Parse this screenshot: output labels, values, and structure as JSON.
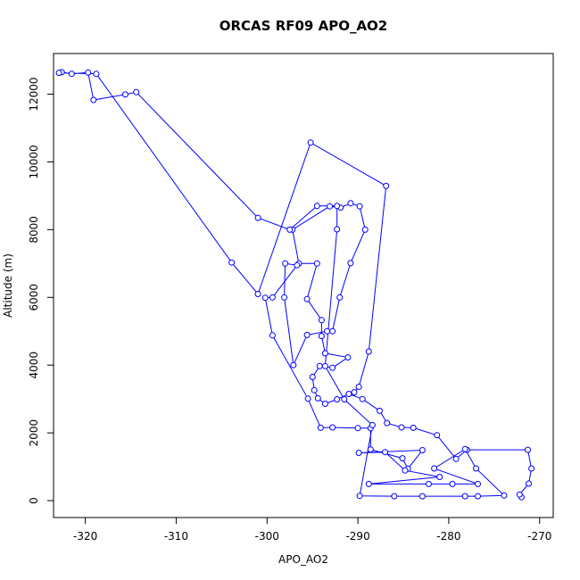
{
  "chart_data": {
    "type": "line",
    "title": "ORCAS RF09 APO_AO2",
    "xlabel": "APO_AO2",
    "ylabel": "Altitude (m)",
    "xlim": [
      -323.5,
      -268.5
    ],
    "ylim": [
      -500,
      13200
    ],
    "xticks": [
      -320,
      -310,
      -300,
      -290,
      -280,
      -270
    ],
    "yticks": [
      0,
      2000,
      4000,
      6000,
      8000,
      10000,
      12000
    ],
    "series_color": "#0000ff",
    "marker": "open-circle",
    "points": [
      [
        -272.0,
        100
      ],
      [
        -272.2,
        180
      ],
      [
        -271.2,
        500
      ],
      [
        -270.9,
        950
      ],
      [
        -271.3,
        1500
      ],
      [
        -278.0,
        1500
      ],
      [
        -279.2,
        1230
      ],
      [
        -281.3,
        1930
      ],
      [
        -283.9,
        2150
      ],
      [
        -285.2,
        2160
      ],
      [
        -286.8,
        2290
      ],
      [
        -287.6,
        2650
      ],
      [
        -289.5,
        3000
      ],
      [
        -291.0,
        3150
      ],
      [
        -292.3,
        2990
      ],
      [
        -293.6,
        2860
      ],
      [
        -294.4,
        3020
      ],
      [
        -294.8,
        3260
      ],
      [
        -295.0,
        3650
      ],
      [
        -294.2,
        3970
      ],
      [
        -292.8,
        3920
      ],
      [
        -291.1,
        4230
      ],
      [
        -293.6,
        4350
      ],
      [
        -294.0,
        4860
      ],
      [
        -294.0,
        5330
      ],
      [
        -295.6,
        5950
      ],
      [
        -294.5,
        7000
      ],
      [
        -296.5,
        7000
      ],
      [
        -297.2,
        8000
      ],
      [
        -293.1,
        8690
      ],
      [
        -291.9,
        8650
      ],
      [
        -290.8,
        8780
      ],
      [
        -289.8,
        8690
      ],
      [
        -289.2,
        8000
      ],
      [
        -290.8,
        7010
      ],
      [
        -292.0,
        6000
      ],
      [
        -292.8,
        5000
      ],
      [
        -293.4,
        5000
      ],
      [
        -295.6,
        4890
      ],
      [
        -297.1,
        4000
      ],
      [
        -298.1,
        6000
      ],
      [
        -298.0,
        7000
      ],
      [
        -296.7,
        6950
      ],
      [
        -299.4,
        6000
      ],
      [
        -300.2,
        5990
      ],
      [
        -299.4,
        4880
      ],
      [
        -295.5,
        3010
      ],
      [
        -294.1,
        2150
      ],
      [
        -292.8,
        2160
      ],
      [
        -290.0,
        2140
      ],
      [
        -288.6,
        2140
      ],
      [
        -288.6,
        1510
      ],
      [
        -285.1,
        1250
      ],
      [
        -284.5,
        940
      ],
      [
        -282.9,
        1490
      ],
      [
        -289.9,
        1410
      ],
      [
        -287.0,
        1430
      ],
      [
        -284.8,
        890
      ],
      [
        -281.0,
        700
      ],
      [
        -288.8,
        490
      ],
      [
        -282.2,
        490
      ],
      [
        -279.6,
        490
      ],
      [
        -276.8,
        490
      ],
      [
        -281.6,
        950
      ],
      [
        -278.2,
        1520
      ],
      [
        -277.0,
        950
      ],
      [
        -273.9,
        150
      ],
      [
        -276.8,
        130
      ],
      [
        -278.2,
        130
      ],
      [
        -282.9,
        130
      ],
      [
        -286.0,
        130
      ],
      [
        -289.8,
        140
      ],
      [
        -288.4,
        2230
      ],
      [
        -291.5,
        2990
      ],
      [
        -293.6,
        3970
      ],
      [
        -292.3,
        8010
      ],
      [
        -292.3,
        8700
      ],
      [
        -294.5,
        8700
      ],
      [
        -297.5,
        8000
      ],
      [
        -301.0,
        8350
      ],
      [
        -314.4,
        12060
      ],
      [
        -315.6,
        11990
      ],
      [
        -319.1,
        11830
      ],
      [
        -319.7,
        12640
      ],
      [
        -321.5,
        12600
      ],
      [
        -322.6,
        12650
      ],
      [
        -322.9,
        12630
      ],
      [
        -318.8,
        12600
      ],
      [
        -303.9,
        7030
      ],
      [
        -301.0,
        6100
      ],
      [
        -295.2,
        10570
      ],
      [
        -286.9,
        9290
      ],
      [
        -288.8,
        4400
      ],
      [
        -289.9,
        3360
      ],
      [
        -290.4,
        3200
      ]
    ]
  }
}
